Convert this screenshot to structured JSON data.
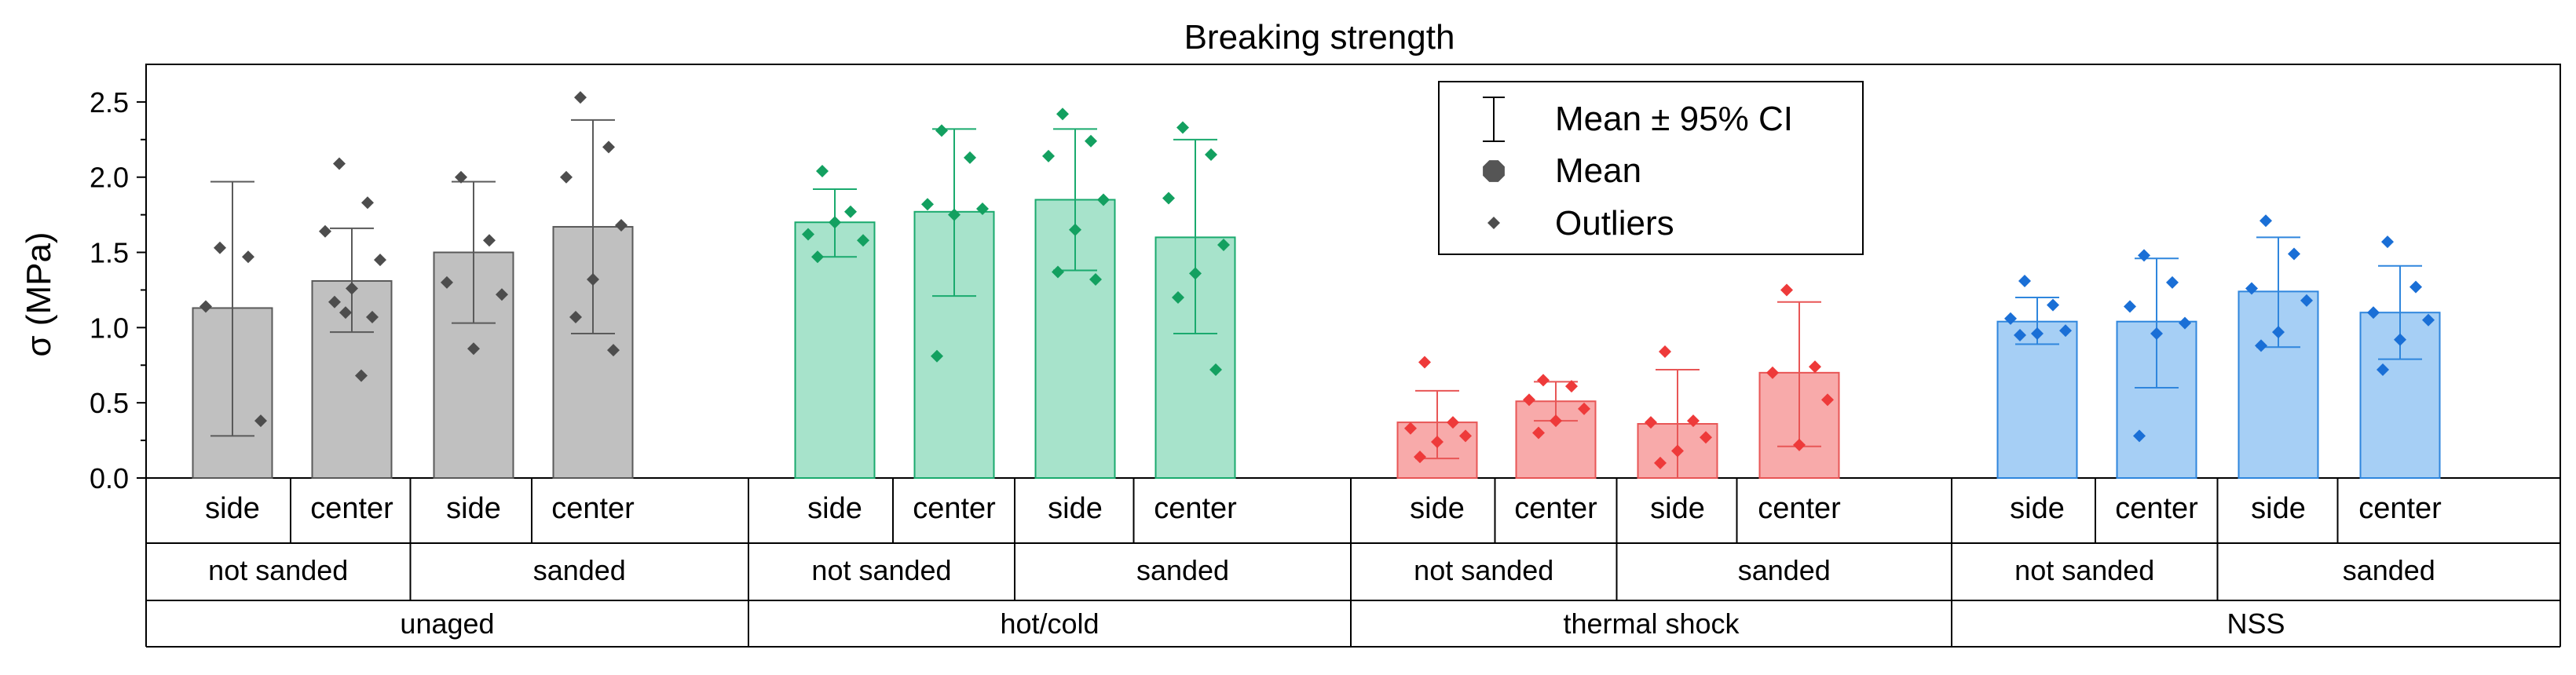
{
  "chart_data": {
    "type": "bar",
    "title": "Breaking strength",
    "ylabel": "σ (MPa)",
    "xlabel": "",
    "ylim": [
      0,
      2.75
    ],
    "yticks": [
      "0.0",
      "0.5",
      "1.0",
      "1.5",
      "2.0",
      "2.5"
    ],
    "ytick_values": [
      0,
      0.5,
      1.0,
      1.5,
      2.0,
      2.5
    ],
    "legend": {
      "position": "top-center",
      "entries": [
        "Mean ± 95% CI",
        "Mean",
        "Outliers"
      ]
    },
    "groups": [
      {
        "label": "unaged",
        "color": "#c0c0c0",
        "edge": "#5a5a5a",
        "point": "#4d4d4d",
        "subgroups": [
          {
            "label": "not sanded",
            "bars": [
              {
                "label": "side",
                "mean": 1.13,
                "ci": [
                  0.28,
                  1.97
                ],
                "points": [
                  1.53,
                  1.47,
                  1.14,
                  0.38
                ]
              },
              {
                "label": "center",
                "mean": 1.31,
                "ci": [
                  0.97,
                  1.66
                ],
                "points": [
                  2.09,
                  1.83,
                  1.64,
                  1.45,
                  1.26,
                  1.17,
                  1.07,
                  1.1,
                  0.68
                ]
              }
            ]
          },
          {
            "label": "sanded",
            "bars": [
              {
                "label": "side",
                "mean": 1.5,
                "ci": [
                  1.03,
                  1.97
                ],
                "points": [
                  2.0,
                  1.58,
                  1.3,
                  1.22,
                  0.86
                ]
              },
              {
                "label": "center",
                "mean": 1.67,
                "ci": [
                  0.96,
                  2.38
                ],
                "points": [
                  2.53,
                  2.2,
                  2.0,
                  1.68,
                  1.32,
                  1.07,
                  0.85
                ]
              }
            ]
          }
        ]
      },
      {
        "label": "hot/cold",
        "color": "#a7e3cb",
        "edge": "#1aaa6e",
        "point": "#13a060",
        "subgroups": [
          {
            "label": "not sanded",
            "bars": [
              {
                "label": "side",
                "mean": 1.7,
                "ci": [
                  1.47,
                  1.92
                ],
                "points": [
                  2.04,
                  1.77,
                  1.62,
                  1.58,
                  1.7,
                  1.47
                ]
              },
              {
                "label": "center",
                "mean": 1.77,
                "ci": [
                  1.21,
                  2.32
                ],
                "points": [
                  2.31,
                  2.13,
                  1.82,
                  1.79,
                  1.75,
                  0.81
                ]
              }
            ]
          },
          {
            "label": "sanded",
            "bars": [
              {
                "label": "side",
                "mean": 1.85,
                "ci": [
                  1.38,
                  2.32
                ],
                "points": [
                  2.42,
                  2.24,
                  2.14,
                  1.85,
                  1.65,
                  1.37,
                  1.32
                ]
              },
              {
                "label": "center",
                "mean": 1.6,
                "ci": [
                  0.96,
                  2.25
                ],
                "points": [
                  2.33,
                  2.15,
                  1.86,
                  1.55,
                  1.36,
                  1.2,
                  0.72
                ]
              }
            ]
          }
        ]
      },
      {
        "label": "thermal shock",
        "color": "#f8aaaa",
        "edge": "#e85656",
        "point": "#ee3a3a",
        "subgroups": [
          {
            "label": "not sanded",
            "bars": [
              {
                "label": "side",
                "mean": 0.37,
                "ci": [
                  0.13,
                  0.58
                ],
                "points": [
                  0.77,
                  0.37,
                  0.33,
                  0.28,
                  0.24,
                  0.14
                ]
              },
              {
                "label": "center",
                "mean": 0.51,
                "ci": [
                  0.38,
                  0.64
                ],
                "points": [
                  0.65,
                  0.61,
                  0.52,
                  0.46,
                  0.38,
                  0.3
                ]
              }
            ]
          },
          {
            "label": "sanded",
            "bars": [
              {
                "label": "side",
                "mean": 0.36,
                "ci": [
                  0.0,
                  0.72
                ],
                "points": [
                  0.84,
                  0.38,
                  0.37,
                  0.27,
                  0.18,
                  0.1
                ]
              },
              {
                "label": "center",
                "mean": 0.7,
                "ci": [
                  0.21,
                  1.17
                ],
                "points": [
                  1.25,
                  0.74,
                  0.7,
                  0.52,
                  0.22
                ]
              }
            ]
          }
        ]
      },
      {
        "label": "NSS",
        "color": "#a6cff5",
        "edge": "#2f86dd",
        "point": "#1a6fd6",
        "subgroups": [
          {
            "label": "not sanded",
            "bars": [
              {
                "label": "side",
                "mean": 1.04,
                "ci": [
                  0.89,
                  1.2
                ],
                "points": [
                  1.31,
                  1.15,
                  1.06,
                  0.98,
                  0.96,
                  0.95
                ]
              },
              {
                "label": "center",
                "mean": 1.04,
                "ci": [
                  0.6,
                  1.46
                ],
                "points": [
                  1.48,
                  1.3,
                  1.14,
                  1.03,
                  0.96,
                  0.28
                ]
              }
            ]
          },
          {
            "label": "sanded",
            "bars": [
              {
                "label": "side",
                "mean": 1.24,
                "ci": [
                  0.87,
                  1.6
                ],
                "points": [
                  1.71,
                  1.49,
                  1.26,
                  1.18,
                  0.97,
                  0.88
                ]
              },
              {
                "label": "center",
                "mean": 1.1,
                "ci": [
                  0.79,
                  1.41
                ],
                "points": [
                  1.57,
                  1.27,
                  1.1,
                  1.05,
                  0.92,
                  0.72
                ]
              }
            ]
          }
        ]
      }
    ]
  }
}
